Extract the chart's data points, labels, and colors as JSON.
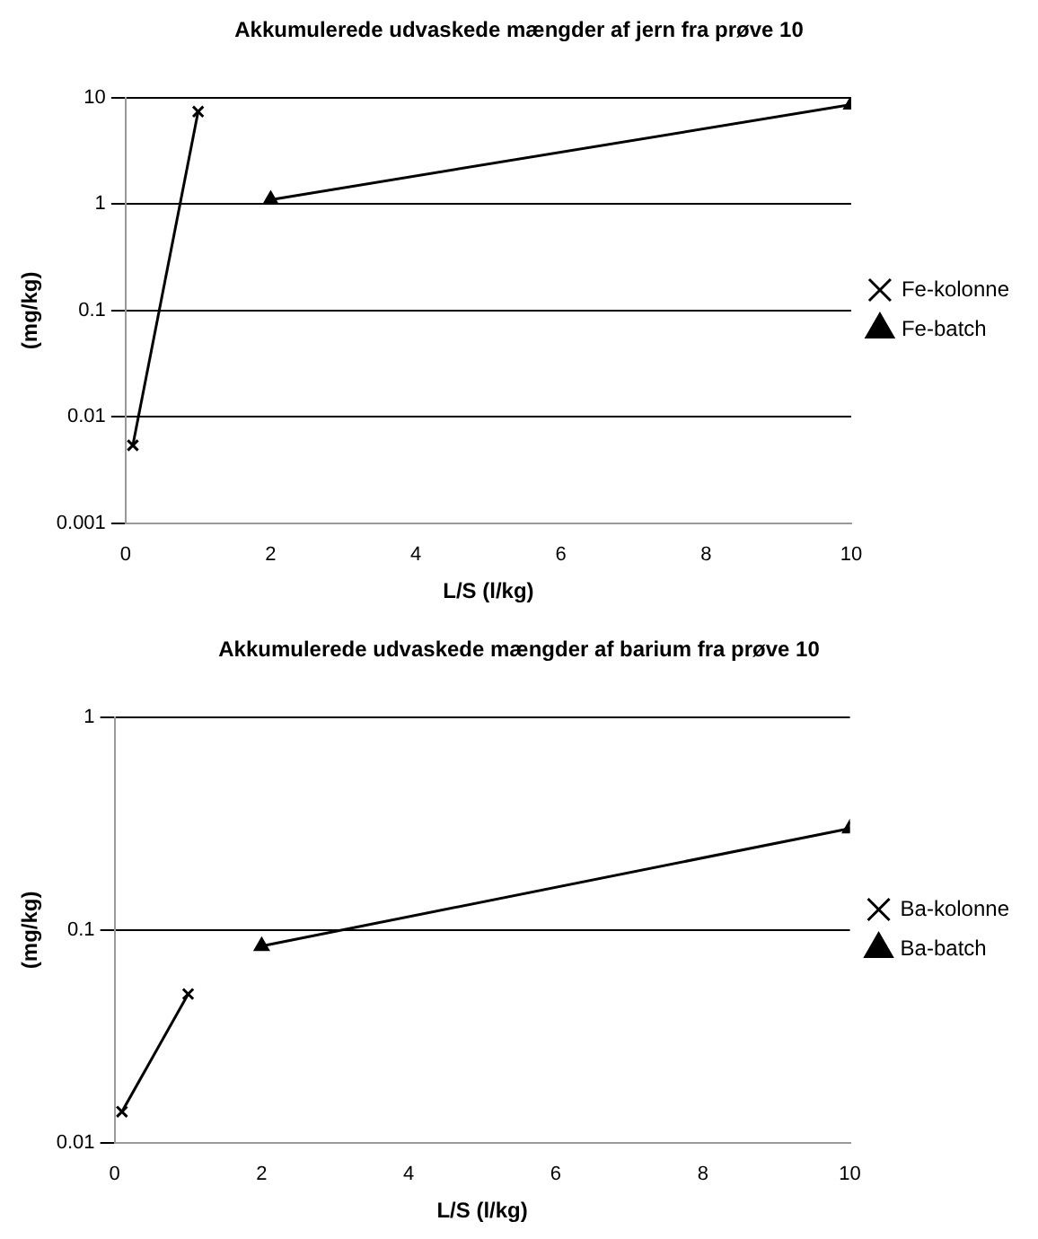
{
  "chart_data": [
    {
      "type": "line",
      "title": "Akkumulerede udvaskede mængder af jern fra prøve 10",
      "xlabel": "L/S (l/kg)",
      "ylabel": "(mg/kg)",
      "log": "y",
      "grid": "y",
      "legend": "right",
      "line_style": "solid",
      "xlim": [
        0,
        10
      ],
      "xticks": [
        0,
        2,
        4,
        6,
        8,
        10
      ],
      "ylim": [
        0.001,
        10
      ],
      "yticks": [
        0.001,
        0.01,
        0.1,
        1,
        10
      ],
      "series": [
        {
          "name": "Fe-kolonne",
          "color": "#000000",
          "marker": "cross",
          "x": [
            0.1,
            1
          ],
          "values": [
            0.0054,
            7.4
          ]
        },
        {
          "name": "Fe-batch",
          "color": "#000000",
          "marker": "triangle",
          "x": [
            2,
            10
          ],
          "values": [
            1.1,
            8.6
          ]
        }
      ]
    },
    {
      "type": "line",
      "title": "Akkumulerede udvaskede mængder af barium fra prøve 10",
      "xlabel": "L/S (l/kg)",
      "ylabel": "(mg/kg)",
      "log": "y",
      "grid": "y",
      "legend": "right",
      "line_style": "solid",
      "xlim": [
        0,
        10
      ],
      "xticks": [
        0,
        2,
        4,
        6,
        8,
        10
      ],
      "ylim": [
        0.01,
        1
      ],
      "yticks": [
        0.01,
        0.1,
        1
      ],
      "series": [
        {
          "name": "Ba-kolonne",
          "color": "#000000",
          "marker": "cross",
          "x": [
            0.1,
            1
          ],
          "values": [
            0.014,
            0.05
          ]
        },
        {
          "name": "Ba-batch",
          "color": "#000000",
          "marker": "triangle",
          "x": [
            2,
            10
          ],
          "values": [
            0.084,
            0.3
          ]
        }
      ]
    }
  ]
}
